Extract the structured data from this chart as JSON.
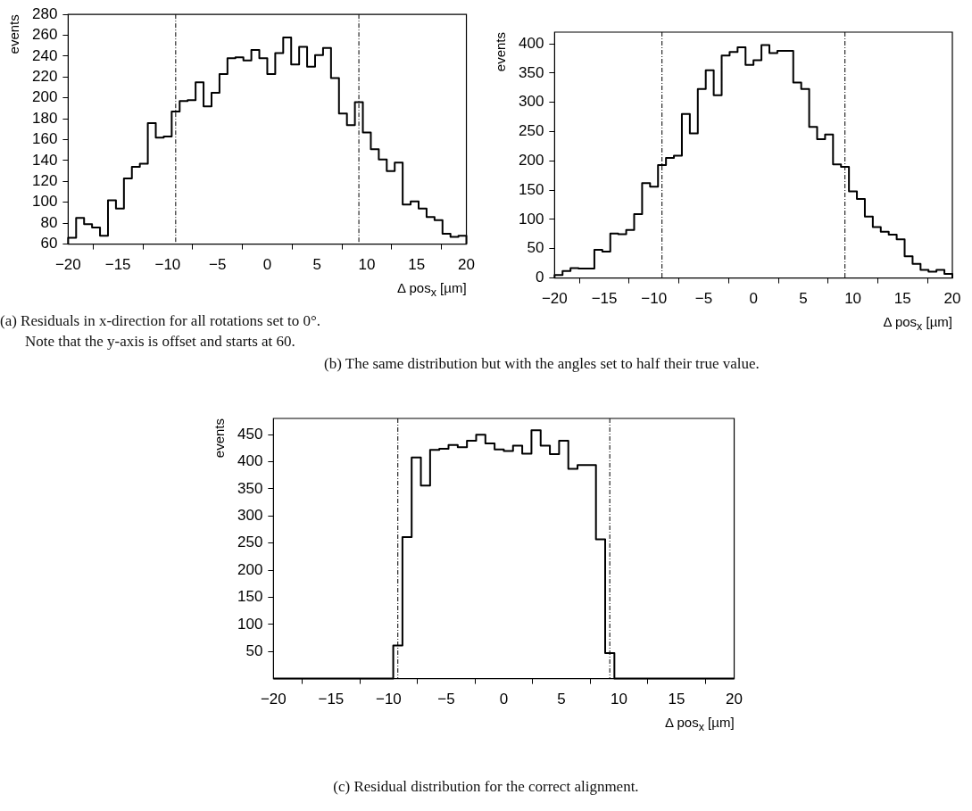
{
  "chart_data": [
    {
      "type": "histogram",
      "xlabel": "Δ pos$_{x}$ [µm]",
      "ylabel": "events",
      "bins": [
        -20,
        -19.2,
        -18.4,
        -17.6,
        -16.8,
        -16,
        -15.2,
        -14.4,
        -13.6,
        -12.8,
        -12,
        -11.2,
        -10.4,
        -9.6,
        -8.8,
        -8,
        -7.2,
        -6.4,
        -5.6,
        -4.8,
        -4,
        -3.2,
        -2.4,
        -1.6,
        -0.8,
        0,
        0.8,
        1.6,
        2.4,
        3.2,
        4,
        4.8,
        5.6,
        6.4,
        7.2,
        8,
        8.8,
        9.6,
        10.4,
        11.2,
        12,
        12.8,
        13.6,
        14.4,
        15.2,
        16,
        16.8,
        17.6,
        18.4,
        19.2,
        20
      ],
      "values": [
        66,
        85,
        79,
        76,
        68,
        102,
        94,
        123,
        134,
        137,
        176,
        162,
        163,
        187,
        197,
        198,
        215,
        192,
        205,
        223,
        238,
        239,
        236,
        246,
        238,
        223,
        243,
        258,
        232,
        249,
        230,
        241,
        248,
        219,
        185,
        174,
        196,
        167,
        151,
        141,
        130,
        138,
        98,
        101,
        94,
        86,
        83,
        70,
        67,
        68
      ],
      "color": "#000000",
      "xlim": [
        -20,
        20
      ],
      "xticks": [
        -20,
        -15,
        -10,
        -5,
        0,
        5,
        10,
        15,
        20
      ],
      "ylim": [
        60,
        280
      ],
      "yticks": [
        60,
        80,
        100,
        120,
        140,
        160,
        180,
        200,
        220,
        240,
        260,
        280
      ],
      "ref_lines": [
        {
          "axis": "x",
          "value": -9.2,
          "color": "#000000",
          "line_style": "dashed"
        },
        {
          "axis": "x",
          "value": 9.2,
          "color": "#000000",
          "line_style": "dashed"
        }
      ],
      "annotations": [
        "(a) Residuals in x-direction for all rotations set to 0°. Note that the y-axis is offset and starts at 60."
      ]
    },
    {
      "type": "histogram",
      "xlabel": "Δ pos$_{x}$ [µm]",
      "ylabel": "events",
      "bins": [
        -20,
        -19.2,
        -18.4,
        -17.6,
        -16.8,
        -16,
        -15.2,
        -14.4,
        -13.6,
        -12.8,
        -12,
        -11.2,
        -10.4,
        -9.6,
        -8.8,
        -8,
        -7.2,
        -6.4,
        -5.6,
        -4.8,
        -4,
        -3.2,
        -2.4,
        -1.6,
        -0.8,
        0,
        0.8,
        1.6,
        2.4,
        3.2,
        4,
        4.8,
        5.6,
        6.4,
        7.2,
        8,
        8.8,
        9.6,
        10.4,
        11.2,
        12,
        12.8,
        13.6,
        14.4,
        15.2,
        16,
        16.8,
        17.6,
        18.4,
        19.2,
        20
      ],
      "values": [
        5,
        12,
        17,
        16,
        16,
        48,
        45,
        76,
        75,
        82,
        109,
        162,
        156,
        193,
        205,
        209,
        280,
        247,
        323,
        355,
        312,
        380,
        386,
        394,
        364,
        372,
        398,
        384,
        388,
        388,
        334,
        323,
        258,
        237,
        245,
        194,
        190,
        148,
        135,
        105,
        87,
        79,
        74,
        66,
        37,
        24,
        14,
        11,
        14,
        7
      ],
      "color": "#000000",
      "xlim": [
        -20,
        20
      ],
      "xticks": [
        -20,
        -15,
        -10,
        -5,
        0,
        5,
        10,
        15,
        20
      ],
      "ylim": [
        0,
        420
      ],
      "yticks": [
        0,
        50,
        100,
        150,
        200,
        250,
        300,
        350,
        400
      ],
      "ref_lines": [
        {
          "axis": "x",
          "value": -9.2,
          "color": "#000000",
          "line_style": "dashed"
        },
        {
          "axis": "x",
          "value": 9.2,
          "color": "#000000",
          "line_style": "dashed"
        }
      ],
      "annotations": [
        "(b) The same distribution but with the angles set to half their true value."
      ]
    },
    {
      "type": "histogram",
      "xlabel": "Δ pos$_{x}$ [µm]",
      "ylabel": "events",
      "bins": [
        -20,
        -19.2,
        -18.4,
        -17.6,
        -16.8,
        -16,
        -15.2,
        -14.4,
        -13.6,
        -12.8,
        -12,
        -11.2,
        -10.4,
        -9.6,
        -8.8,
        -8,
        -7.2,
        -6.4,
        -5.6,
        -4.8,
        -4,
        -3.2,
        -2.4,
        -1.6,
        -0.8,
        0,
        0.8,
        1.6,
        2.4,
        3.2,
        4,
        4.8,
        5.6,
        6.4,
        7.2,
        8,
        8.8,
        9.6,
        10.4,
        11.2,
        12,
        12.8,
        13.6,
        14.4,
        15.2,
        16,
        16.8,
        17.6,
        18.4,
        19.2,
        20
      ],
      "values": [
        0,
        0,
        0,
        0,
        0,
        0,
        0,
        0,
        0,
        0,
        0,
        0,
        0,
        61,
        261,
        408,
        356,
        422,
        424,
        431,
        427,
        439,
        450,
        434,
        423,
        420,
        430,
        415,
        458,
        430,
        414,
        439,
        387,
        394,
        394,
        257,
        47,
        0,
        0,
        0,
        0,
        0,
        0,
        0,
        0,
        0,
        0,
        0,
        0,
        0
      ],
      "color": "#000000",
      "xlim": [
        -20,
        20
      ],
      "xticks": [
        -20,
        -15,
        -10,
        -5,
        0,
        5,
        10,
        15,
        20
      ],
      "ylim": [
        0,
        480
      ],
      "yticks": [
        50,
        100,
        150,
        200,
        250,
        300,
        350,
        400,
        450
      ],
      "ref_lines": [
        {
          "axis": "x",
          "value": -9.2,
          "color": "#000000",
          "line_style": "dashed"
        },
        {
          "axis": "x",
          "value": 9.2,
          "color": "#000000",
          "line_style": "dashed"
        }
      ],
      "annotations": [
        "(c) Residual distribution for the correct alignment."
      ]
    }
  ]
}
